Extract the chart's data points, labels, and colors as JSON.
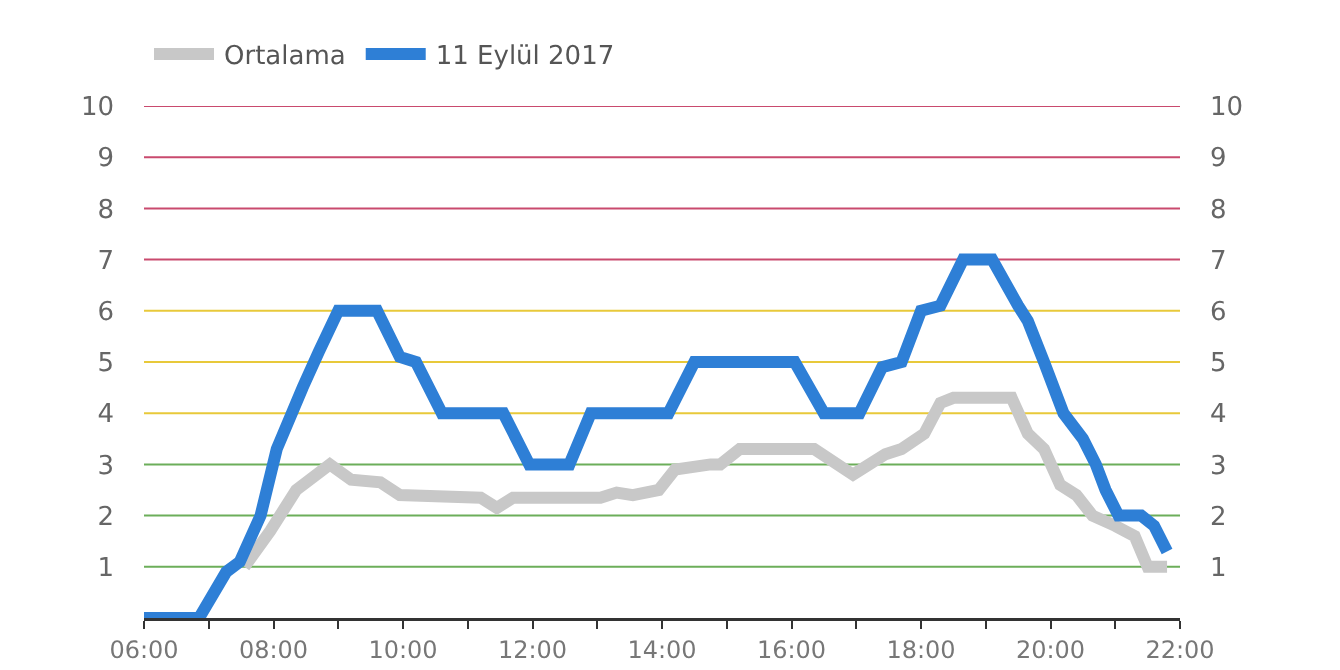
{
  "chart_data": {
    "type": "line",
    "xlim": [
      6,
      22
    ],
    "xticks": [
      {
        "value": 6,
        "label": "06:00"
      },
      {
        "value": 7,
        "label": null
      },
      {
        "value": 8,
        "label": "08:00"
      },
      {
        "value": 9,
        "label": null
      },
      {
        "value": 10,
        "label": "10:00"
      },
      {
        "value": 11,
        "label": null
      },
      {
        "value": 12,
        "label": "12:00"
      },
      {
        "value": 13,
        "label": null
      },
      {
        "value": 14,
        "label": "14:00"
      },
      {
        "value": 15,
        "label": null
      },
      {
        "value": 16,
        "label": "16:00"
      },
      {
        "value": 17,
        "label": null
      },
      {
        "value": 18,
        "label": "18:00"
      },
      {
        "value": 19,
        "label": null
      },
      {
        "value": 20,
        "label": "20:00"
      },
      {
        "value": 21,
        "label": null
      },
      {
        "value": 22,
        "label": "22:00"
      }
    ],
    "ylim": [
      0,
      10
    ],
    "yticks": [
      1,
      2,
      3,
      4,
      5,
      6,
      7,
      8,
      9,
      10
    ],
    "y2lim": [
      0,
      10
    ],
    "y2ticks": [
      1,
      2,
      3,
      4,
      5,
      6,
      7,
      8,
      9,
      10
    ],
    "grid": "y",
    "legend": "top left",
    "marker": "none",
    "line_style": "solid",
    "series": [
      {
        "name": "Ortalama",
        "color": "#c8c8c8",
        "x": [
          7.55,
          7.95,
          8.35,
          8.87,
          9.2,
          9.65,
          9.95,
          11.2,
          11.45,
          11.7,
          13.05,
          13.3,
          13.55,
          13.95,
          14.2,
          14.75,
          14.9,
          15.2,
          16.35,
          16.95,
          17.45,
          17.7,
          18.05,
          18.3,
          18.5,
          19.4,
          19.65,
          19.9,
          20.15,
          20.4,
          20.65,
          21.0,
          21.3,
          21.5,
          21.8
        ],
        "values": [
          1,
          1.7,
          2.5,
          3,
          2.7,
          2.65,
          2.4,
          2.35,
          2.15,
          2.35,
          2.35,
          2.45,
          2.4,
          2.5,
          2.9,
          3,
          3,
          3.3,
          3.3,
          2.8,
          3.2,
          3.3,
          3.6,
          4.2,
          4.3,
          4.3,
          3.6,
          3.3,
          2.6,
          2.4,
          2,
          1.8,
          1.6,
          1,
          1
        ]
      },
      {
        "name": "11 Eylül 2017",
        "color": "#2e7fd6",
        "x": [
          6,
          6.85,
          7.27,
          7.48,
          7.8,
          8.05,
          8.45,
          8.7,
          9.0,
          9.6,
          9.95,
          10.2,
          10.6,
          11.55,
          11.95,
          12.57,
          12.9,
          14.1,
          14.5,
          16.05,
          16.5,
          17.05,
          17.4,
          17.7,
          18.0,
          18.3,
          18.65,
          19.1,
          19.5,
          19.65,
          19.9,
          20.2,
          20.5,
          20.7,
          20.85,
          21.05,
          21.4,
          21.6,
          21.8
        ],
        "values": [
          0,
          0,
          0.9,
          1.1,
          2,
          3.3,
          4.5,
          5.2,
          6,
          6,
          5.1,
          5,
          4,
          4,
          3,
          3,
          4,
          4,
          5,
          5,
          4,
          4,
          4.9,
          5,
          6,
          6.1,
          7,
          7,
          6.1,
          5.8,
          5,
          4,
          3.5,
          3,
          2.5,
          2,
          2,
          1.8,
          1.3
        ]
      }
    ]
  }
}
